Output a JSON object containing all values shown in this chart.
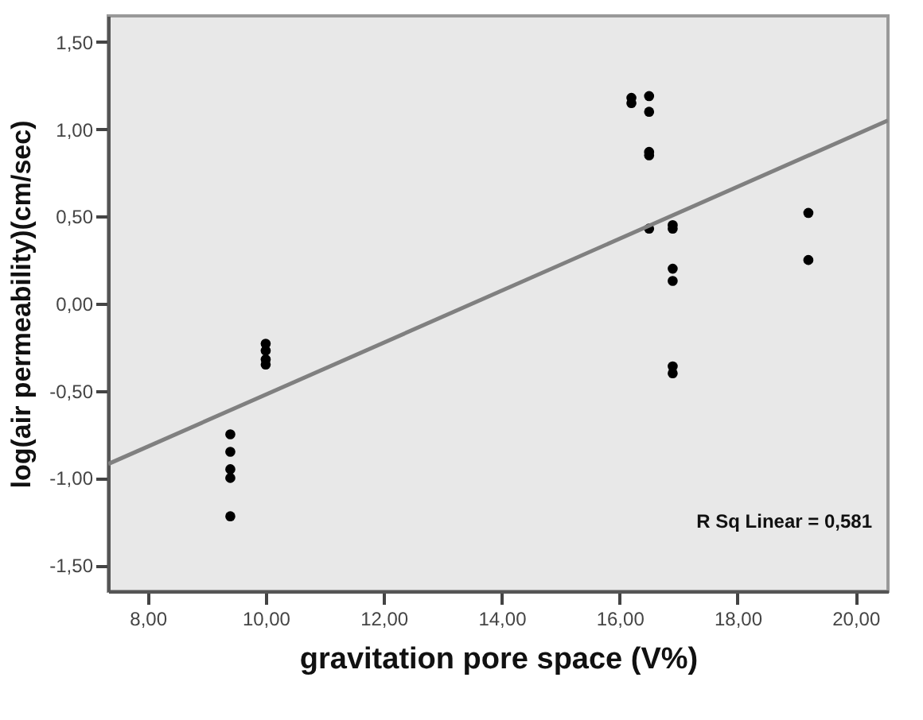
{
  "chart_data": {
    "type": "scatter",
    "xlabel": "gravitation pore space (V%)",
    "ylabel": "log(air permeability)(cm/sec)",
    "xlim": [
      7.33,
      20.55
    ],
    "ylim": [
      -1.65,
      1.65
    ],
    "xticks": [
      {
        "value": 8,
        "label": "8,00"
      },
      {
        "value": 10,
        "label": "10,00"
      },
      {
        "value": 12,
        "label": "12,00"
      },
      {
        "value": 14,
        "label": "14,00"
      },
      {
        "value": 16,
        "label": "16,00"
      },
      {
        "value": 18,
        "label": "18,00"
      },
      {
        "value": 20,
        "label": "20,00"
      }
    ],
    "yticks": [
      {
        "value": -1.5,
        "label": "-1,50"
      },
      {
        "value": -1,
        "label": "-1,00"
      },
      {
        "value": -0.5,
        "label": "-0,50"
      },
      {
        "value": 0,
        "label": "0,00"
      },
      {
        "value": 0.5,
        "label": "0,50"
      },
      {
        "value": 1,
        "label": "1,00"
      },
      {
        "value": 1.5,
        "label": "1,50"
      }
    ],
    "grid": false,
    "series": [
      {
        "color": "#000000",
        "marker": "circle",
        "x": [
          9.4,
          9.4,
          9.4,
          9.4,
          9.4,
          10,
          10,
          10,
          10,
          16.2,
          16.2,
          16.5,
          16.5,
          16.5,
          16.5,
          16.5,
          16.9,
          16.9,
          16.9,
          16.9,
          16.9,
          16.9,
          19.2,
          19.2
        ],
        "values": [
          -0.75,
          -0.85,
          -0.95,
          -1.0,
          -1.22,
          -0.23,
          -0.27,
          -0.32,
          -0.35,
          1.18,
          1.15,
          1.19,
          1.1,
          0.87,
          0.85,
          0.43,
          0.45,
          0.43,
          0.2,
          0.13,
          -0.36,
          -0.4,
          0.52,
          0.25
        ]
      },
      {
        "type": "line",
        "marker": "none",
        "color": "#808080",
        "x": [
          7.33,
          20.55
        ],
        "values": [
          -0.92,
          1.05
        ]
      }
    ],
    "annotations": [
      "R Sq Linear = 0,581"
    ]
  }
}
